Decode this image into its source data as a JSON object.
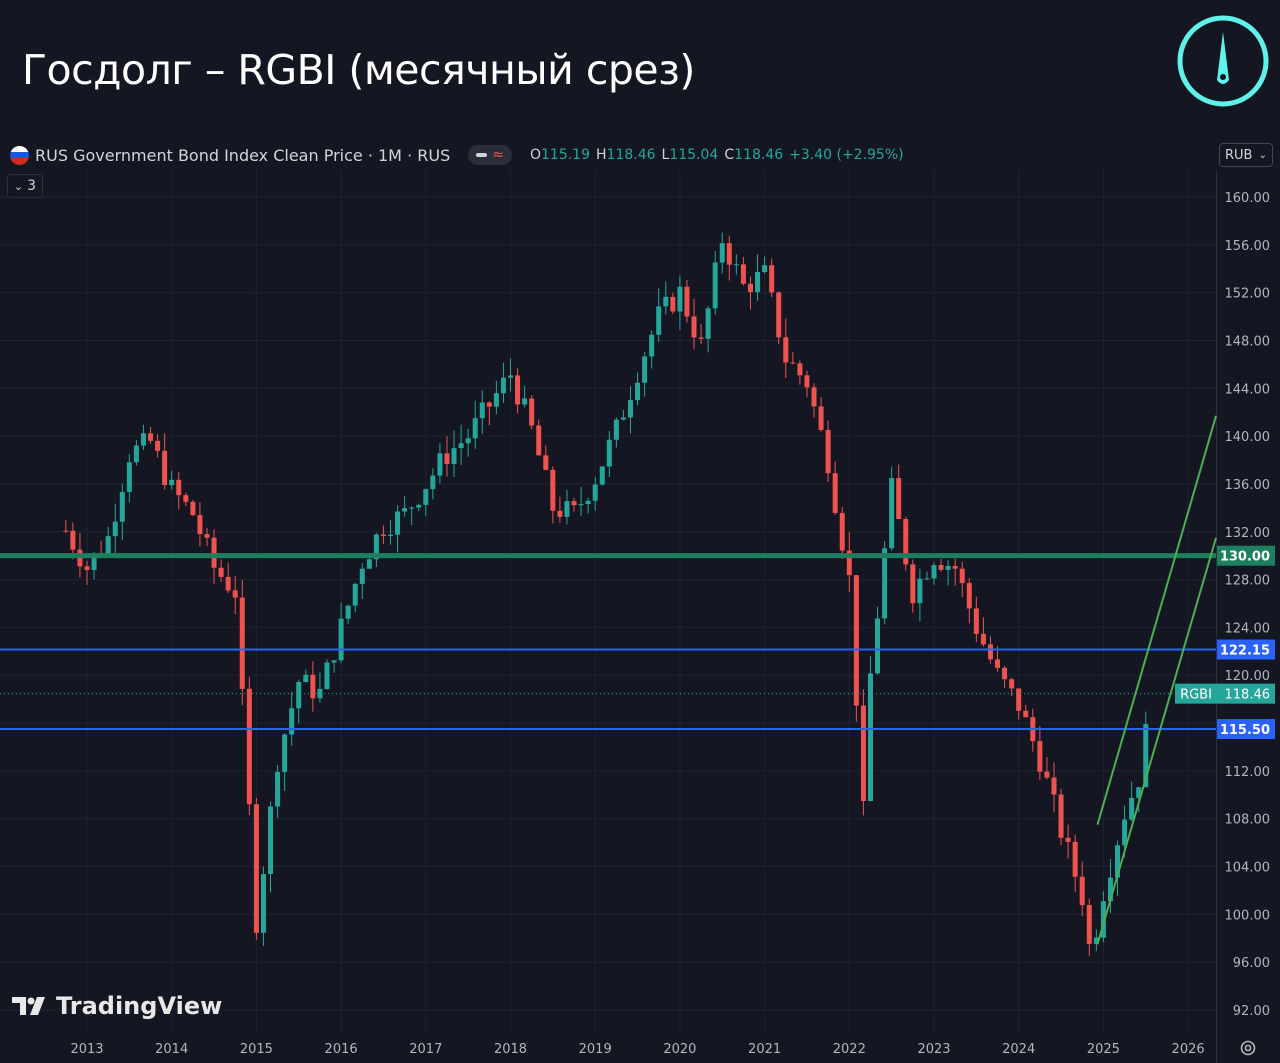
{
  "header": {
    "title": "Госдолг – RGBI (месячный срез)"
  },
  "legend": {
    "symbol": "RUS Government Bond Index Clean Price · 1M · RUS",
    "open_label": "O",
    "open": "115.19",
    "high_label": "H",
    "high": "118.46",
    "low_label": "L",
    "low": "115.04",
    "close_label": "C",
    "close": "118.46",
    "change": "+3.40 (+2.95%)",
    "pill_icons": [
      "minus-icon",
      "wave-icon"
    ],
    "indicator_count": "3"
  },
  "currency_selector": {
    "value": "RUB"
  },
  "branding": {
    "tradingview": "TradingView"
  },
  "colors": {
    "background": "#141722",
    "up": "#26a69a",
    "down": "#ef5350",
    "support_line": "#1e7f60",
    "level_line": "#2962ff",
    "trend_channel": "#4caf50",
    "logo_accent": "#5ff2ea"
  },
  "chart_data": {
    "type": "candlestick",
    "symbol": "RGBI",
    "interval": "1M",
    "ylim": [
      92,
      160
    ],
    "y_ticks": [
      92,
      96,
      100,
      104,
      108,
      112,
      116,
      120,
      124,
      128,
      132,
      136,
      140,
      144,
      148,
      152,
      156,
      160
    ],
    "x_ticks": [
      "2013",
      "2014",
      "2015",
      "2016",
      "2017",
      "2018",
      "2019",
      "2020",
      "2021",
      "2022",
      "2023",
      "2024",
      "2025",
      "2026"
    ],
    "x_range_years": [
      2012.75,
      2026.33
    ],
    "grid": true,
    "last_price": {
      "label": "RGBI",
      "value": "118.46",
      "y": 118.46
    },
    "horizontal_levels": [
      {
        "value": 130.0,
        "label": "130.00",
        "color": "#1e7f60"
      },
      {
        "value": 122.15,
        "label": "122.15",
        "color": "#2962ff"
      },
      {
        "value": 115.5,
        "label": "115.50",
        "color": "#2962ff"
      }
    ],
    "trend_channel": [
      {
        "x": [
          2024.93,
          2026.33
        ],
        "y": [
          97.5,
          131.5
        ]
      },
      {
        "x": [
          2024.93,
          2026.33
        ],
        "y": [
          107.5,
          141.7
        ]
      }
    ],
    "ohlc_monthly_close_anchors": {
      "start": "2012-09",
      "end": "2025-07",
      "closes": [
        [
          2012.75,
          132.1
        ],
        [
          2013.0,
          129.0
        ],
        [
          2013.25,
          131.5
        ],
        [
          2013.5,
          138.5
        ],
        [
          2013.75,
          139.5
        ],
        [
          2014.0,
          135.5
        ],
        [
          2014.25,
          133.5
        ],
        [
          2014.5,
          129.0
        ],
        [
          2014.75,
          127.0
        ],
        [
          2015.0,
          99.5
        ],
        [
          2015.25,
          113.0
        ],
        [
          2015.5,
          119.5
        ],
        [
          2015.75,
          118.5
        ],
        [
          2016.0,
          124.0
        ],
        [
          2016.25,
          129.5
        ],
        [
          2016.5,
          132.5
        ],
        [
          2016.75,
          133.5
        ],
        [
          2017.0,
          136.0
        ],
        [
          2017.25,
          138.5
        ],
        [
          2017.5,
          140.0
        ],
        [
          2018.0,
          145.2
        ],
        [
          2018.25,
          140.5
        ],
        [
          2018.5,
          134.0
        ],
        [
          2018.75,
          133.5
        ],
        [
          2019.0,
          136.5
        ],
        [
          2019.25,
          140.5
        ],
        [
          2019.5,
          145.5
        ],
        [
          2019.75,
          150.0
        ],
        [
          2020.0,
          152.0
        ],
        [
          2020.25,
          147.5
        ],
        [
          2020.5,
          156.5
        ],
        [
          2020.75,
          152.5
        ],
        [
          2021.0,
          153.5
        ],
        [
          2021.25,
          146.5
        ],
        [
          2021.5,
          144.5
        ],
        [
          2021.75,
          138.0
        ],
        [
          2022.0,
          128.0
        ],
        [
          2022.17,
          108.0
        ],
        [
          2022.25,
          120.0
        ],
        [
          2022.5,
          135.5
        ],
        [
          2022.75,
          127.0
        ],
        [
          2023.0,
          130.0
        ],
        [
          2023.25,
          129.0
        ],
        [
          2023.5,
          124.0
        ],
        [
          2023.75,
          120.0
        ],
        [
          2024.0,
          117.5
        ],
        [
          2024.25,
          113.0
        ],
        [
          2024.5,
          107.0
        ],
        [
          2024.75,
          101.5
        ],
        [
          2024.85,
          96.5
        ],
        [
          2025.0,
          102.0
        ],
        [
          2025.25,
          108.5
        ],
        [
          2025.42,
          111.5
        ],
        [
          2025.5,
          115.1
        ],
        [
          2025.55,
          118.46
        ]
      ]
    }
  }
}
